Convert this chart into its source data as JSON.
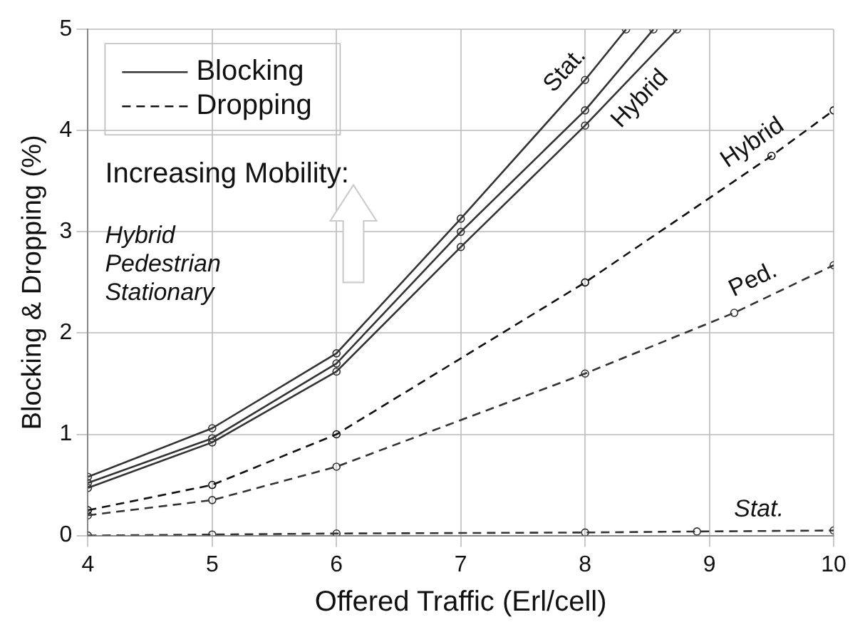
{
  "chart_data": {
    "type": "line",
    "xlabel": "Offered Traffic (Erl/cell)",
    "ylabel": "Blocking & Dropping (%)",
    "xlim": [
      4,
      10
    ],
    "xticks": [
      4,
      5,
      6,
      7,
      8,
      9,
      10
    ],
    "ylim": [
      0,
      5
    ],
    "yticks": [
      0,
      1,
      2,
      3,
      4,
      5
    ],
    "grid": true,
    "marker": "circle",
    "series": [
      {
        "name": "Stat.",
        "color": "#333333",
        "line_style": "solid",
        "x": [
          4,
          5,
          6,
          7,
          8,
          8.33
        ],
        "values": [
          0.58,
          1.06,
          1.8,
          3.13,
          4.5,
          5
        ]
      },
      {
        "color": "#333333",
        "line_style": "solid",
        "x": [
          4,
          5,
          6,
          7,
          8,
          8.55
        ],
        "values": [
          0.52,
          0.96,
          1.7,
          3.0,
          4.2,
          5
        ]
      },
      {
        "name": "Hybrid",
        "color": "#333333",
        "line_style": "solid",
        "x": [
          4,
          5,
          6,
          7,
          8,
          8.74
        ],
        "values": [
          0.47,
          0.92,
          1.62,
          2.85,
          4.05,
          5
        ]
      },
      {
        "name": "Hybrid",
        "color": "#111111",
        "line_style": "dashed",
        "x": [
          4,
          5,
          6,
          8,
          9.5,
          10
        ],
        "values": [
          0.25,
          0.5,
          1.0,
          2.5,
          3.75,
          4.2
        ]
      },
      {
        "name": "Ped.",
        "color": "#333333",
        "line_style": "dashed",
        "x": [
          4,
          5,
          6,
          8,
          9.2,
          10
        ],
        "values": [
          0.2,
          0.35,
          0.68,
          1.6,
          2.2,
          2.67
        ]
      },
      {
        "name": "Stat.",
        "color": "#333333",
        "line_style": "dashed",
        "x": [
          4,
          5,
          6,
          8,
          8.9,
          10
        ],
        "values": [
          0,
          0.01,
          0.02,
          0.03,
          0.04,
          0.05
        ]
      }
    ],
    "annotations": [
      "Blocking",
      "Dropping",
      "Increasing Mobility:",
      "Hybrid",
      "Pedestrian",
      "Stationary"
    ]
  }
}
